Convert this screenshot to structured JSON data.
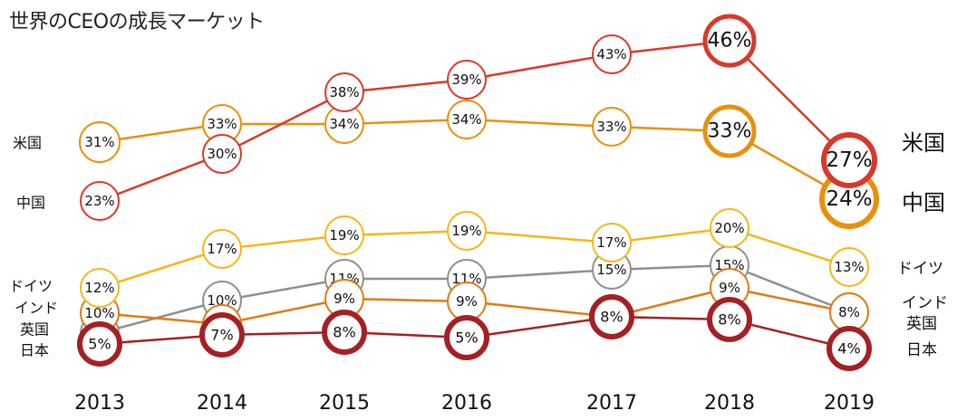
{
  "chart_data": {
    "type": "line",
    "title": "世界のCEOの成長マーケット",
    "categories": [
      "2013",
      "2014",
      "2015",
      "2016",
      "2017",
      "2018",
      "2019"
    ],
    "value_suffix": "%",
    "grid": false,
    "legend": "inline-left-and-right",
    "series": [
      {
        "name": "米国",
        "color": "#e8900c",
        "values": [
          31,
          33,
          34,
          34,
          33,
          33,
          24
        ]
      },
      {
        "name": "中国",
        "color": "#d8392b",
        "values": [
          23,
          30,
          38,
          39,
          43,
          46,
          27
        ]
      },
      {
        "name": "ドイツ",
        "color": "#f3b71a",
        "values": [
          12,
          17,
          19,
          19,
          17,
          20,
          13
        ]
      },
      {
        "name": "インド",
        "color": "#8f8f8f",
        "values": [
          6,
          10,
          11,
          11,
          15,
          15,
          8
        ]
      },
      {
        "name": "英国",
        "color": "#e07a12",
        "values": [
          10,
          7,
          9,
          9,
          8,
          9,
          8
        ]
      },
      {
        "name": "日本",
        "color": "#a42024",
        "values": [
          5,
          7,
          8,
          5,
          8,
          8,
          4
        ]
      }
    ],
    "left_labels": [
      "米国",
      "中国",
      "ドイツ",
      "インド",
      "英国",
      "日本"
    ],
    "right_labels": [
      "米国",
      "中国",
      "ドイツ",
      "インド",
      "英国",
      "日本"
    ]
  }
}
